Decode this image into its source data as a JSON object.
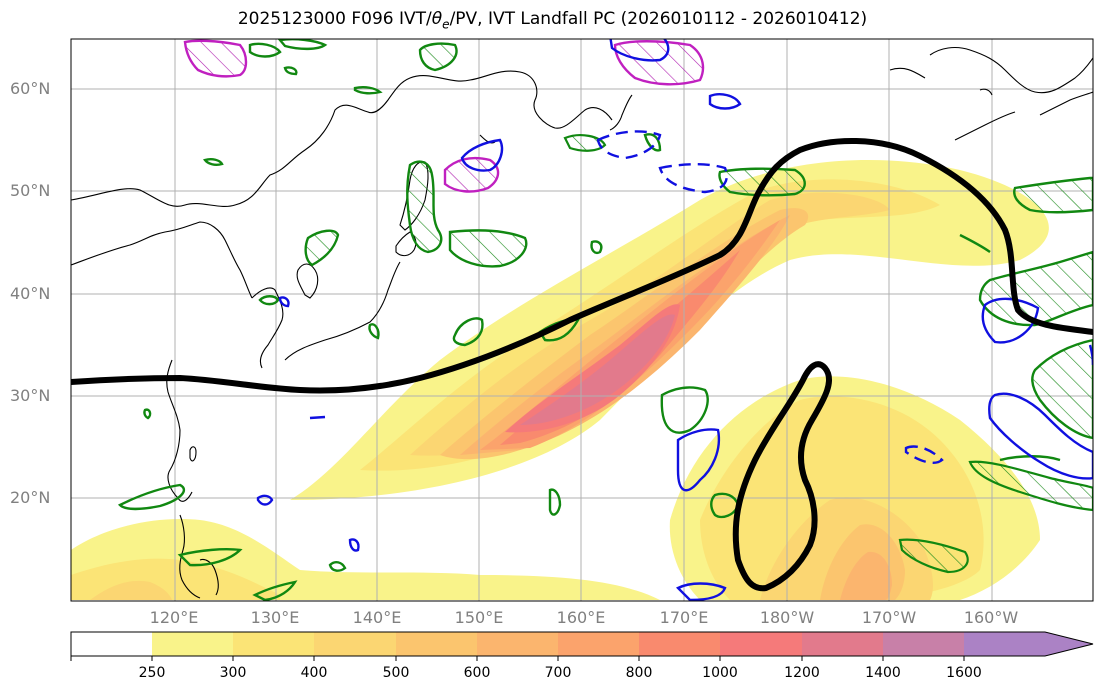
{
  "title": {
    "prefix": "2025123000 F096 IVT/",
    "theta": "θ",
    "sub": "e",
    "suffix": "/PV, IVT Landfall PC (2026010112 - 2026010412)"
  },
  "map": {
    "lat_labels": [
      "60°N",
      "50°N",
      "40°N",
      "30°N",
      "20°N"
    ],
    "lon_labels": [
      "120°E",
      "130°E",
      "140°E",
      "150°E",
      "160°E",
      "170°E",
      "180°W",
      "170°W",
      "160°W"
    ]
  },
  "colorbar": {
    "levels": [
      "250",
      "300",
      "400",
      "500",
      "600",
      "700",
      "800",
      "1000",
      "1200",
      "1400",
      "1600"
    ],
    "colors": [
      "#ffffff",
      "#f9f38a",
      "#fbe476",
      "#fbd672",
      "#fbc56e",
      "#fbb56e",
      "#fba36c",
      "#f98a6e",
      "#f57a7a",
      "#e27a8c",
      "#c880a8",
      "#ab82c5"
    ]
  }
}
